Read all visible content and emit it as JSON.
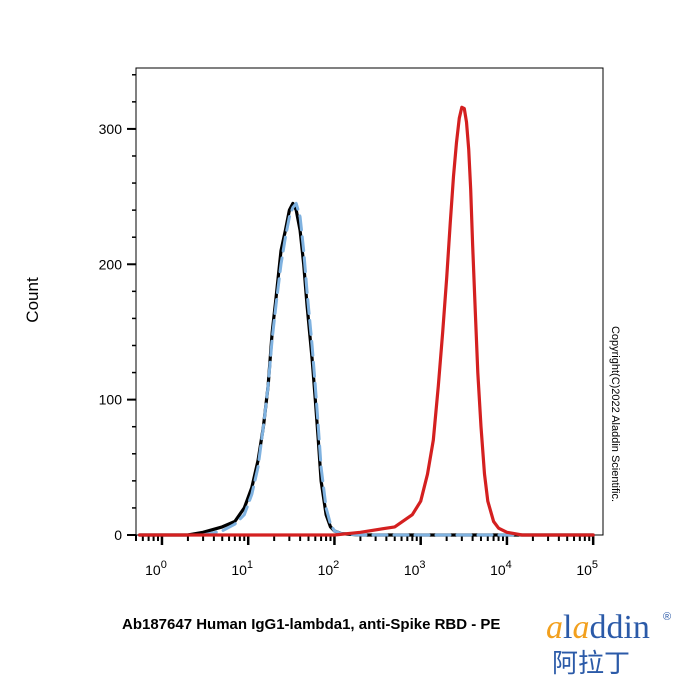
{
  "chart_data": {
    "type": "line",
    "title": "",
    "xlabel": "Ab187647 Human IgG1-lambda1, anti-Spike RBD - PE",
    "ylabel": "Count",
    "xscale": "log",
    "xlim": [
      0.5,
      130000
    ],
    "ylim": [
      0,
      345
    ],
    "x_ticks": [
      {
        "base": "10",
        "exp": "0",
        "value": 1
      },
      {
        "base": "10",
        "exp": "1",
        "value": 10
      },
      {
        "base": "10",
        "exp": "2",
        "value": 100
      },
      {
        "base": "10",
        "exp": "3",
        "value": 1000
      },
      {
        "base": "10",
        "exp": "4",
        "value": 10000
      },
      {
        "base": "10",
        "exp": "5",
        "value": 100000
      }
    ],
    "y_ticks": [
      {
        "label": "0",
        "value": 0
      },
      {
        "label": "100",
        "value": 100
      },
      {
        "label": "200",
        "value": 200
      },
      {
        "label": "300",
        "value": 300
      }
    ],
    "grid": false,
    "legend": "none",
    "series": [
      {
        "color": "#000000",
        "style": "solid",
        "x": [
          0.55,
          2,
          3,
          5,
          7,
          9,
          11,
          13,
          15,
          17,
          19,
          21,
          24,
          27,
          30,
          33,
          36,
          40,
          44,
          48,
          55,
          60,
          65,
          70,
          80,
          90,
          100,
          120,
          200,
          500,
          100000
        ],
        "y": [
          0,
          0,
          2,
          6,
          10,
          20,
          35,
          55,
          80,
          110,
          150,
          175,
          210,
          225,
          240,
          245,
          240,
          225,
          200,
          170,
          130,
          100,
          70,
          40,
          15,
          6,
          3,
          1,
          0,
          0,
          0
        ]
      },
      {
        "color": "#7fb2e0",
        "style": "dashed",
        "x": [
          0.55,
          3,
          5,
          7,
          9,
          11,
          13,
          15,
          17,
          19,
          21,
          24,
          27,
          30,
          33,
          36,
          40,
          44,
          48,
          55,
          60,
          65,
          70,
          80,
          90,
          100,
          120,
          200,
          500,
          100000
        ],
        "y": [
          0,
          0,
          3,
          8,
          15,
          30,
          50,
          80,
          110,
          145,
          170,
          200,
          220,
          235,
          242,
          245,
          235,
          210,
          180,
          140,
          110,
          80,
          50,
          20,
          8,
          3,
          1,
          0,
          0,
          0
        ]
      },
      {
        "color": "#d42020",
        "style": "solid",
        "x": [
          0.55,
          100,
          200,
          500,
          800,
          1000,
          1200,
          1400,
          1600,
          1800,
          2000,
          2200,
          2400,
          2600,
          2800,
          3000,
          3200,
          3400,
          3600,
          3800,
          4000,
          4300,
          4600,
          5000,
          5500,
          6000,
          7000,
          8000,
          10000,
          15000,
          100000
        ],
        "y": [
          0,
          0,
          2,
          6,
          15,
          25,
          45,
          70,
          110,
          150,
          190,
          230,
          265,
          290,
          308,
          316,
          315,
          305,
          285,
          255,
          215,
          165,
          120,
          80,
          45,
          25,
          10,
          5,
          2,
          0,
          0
        ]
      }
    ]
  },
  "copyright": "Copyright(C)2022 Aladdin Scientific.",
  "logo": {
    "text": "aladdin",
    "registered": "®",
    "chinese": "阿拉丁",
    "colors": {
      "primary": "#2b5aa8",
      "accent": "#f2a01e"
    }
  }
}
